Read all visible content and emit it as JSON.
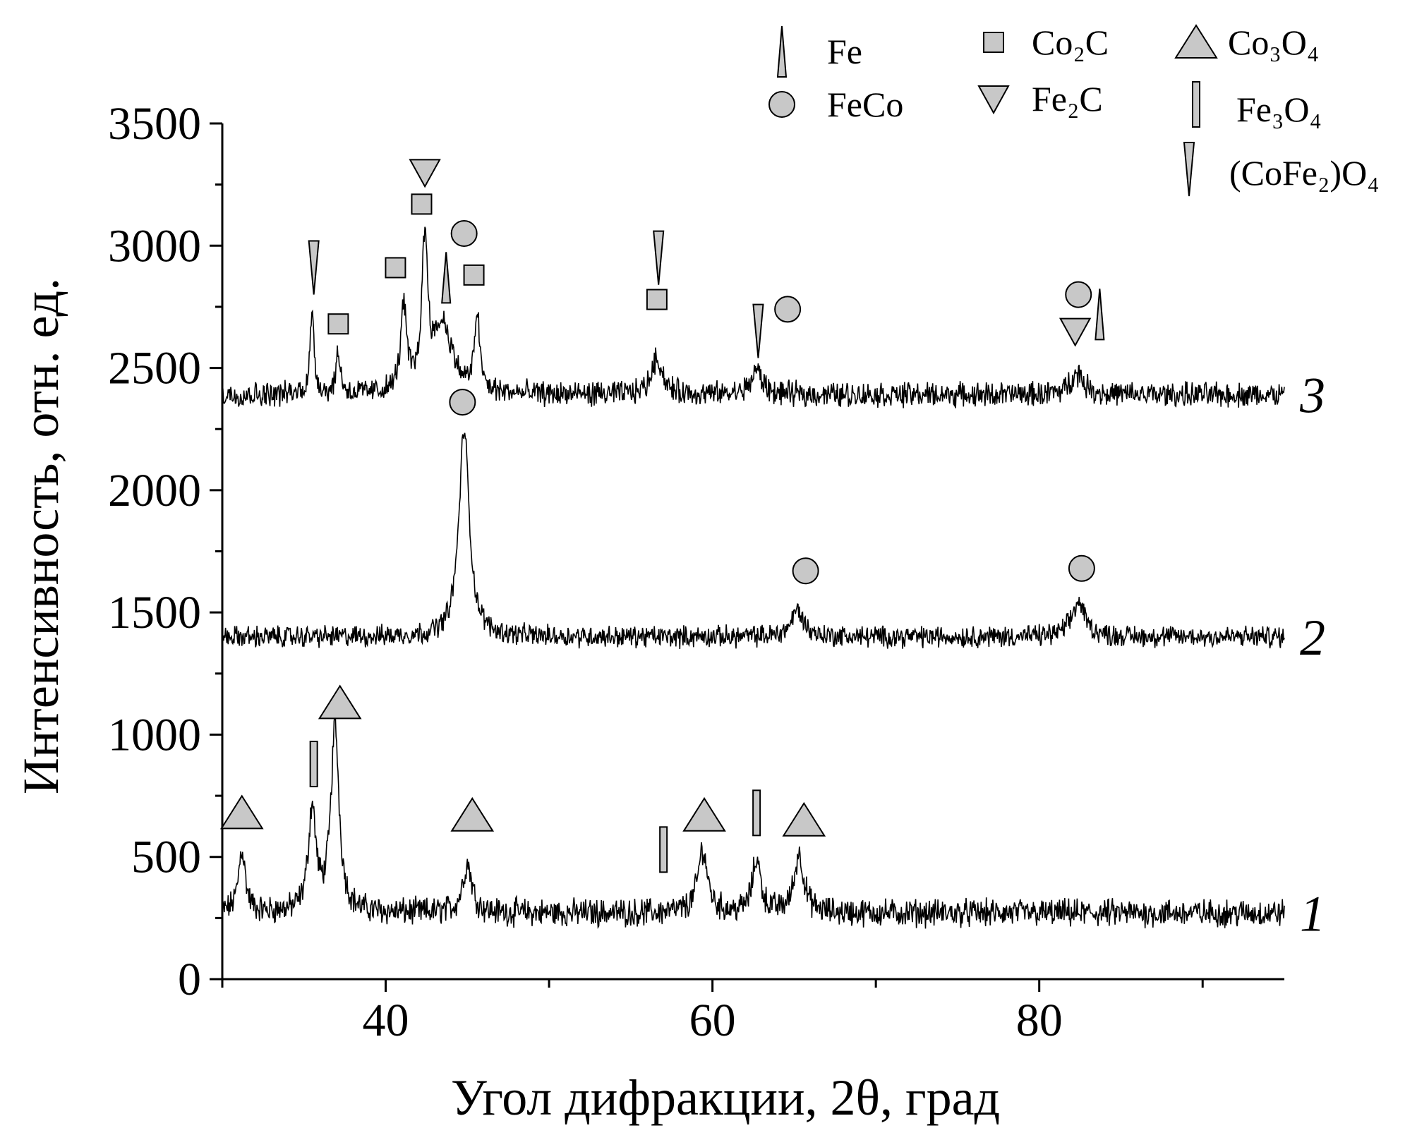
{
  "chart_data": {
    "type": "line",
    "title": "",
    "xlabel": "Угол дифракции, 2θ, град",
    "ylabel": "Интенсивность, отн. ед.",
    "xlim": [
      30,
      95
    ],
    "ylim": [
      0,
      3500
    ],
    "xticks": [
      40,
      60,
      80
    ],
    "yticks": [
      0,
      500,
      1000,
      1500,
      2000,
      2500,
      3000,
      3500
    ],
    "grid": false,
    "legend": {
      "placement": "top-right",
      "entries": [
        {
          "marker": "tall-triangle-up",
          "label": "Fe"
        },
        {
          "marker": "circle",
          "label": "FeCo"
        },
        {
          "marker": "square",
          "label": "Co₂C"
        },
        {
          "marker": "triangle-down",
          "label": "Fe₂C"
        },
        {
          "marker": "triangle-up",
          "label": "Co₃O₄"
        },
        {
          "marker": "bar",
          "label": "Fe₃O₄"
        },
        {
          "marker": "tall-triangle-down",
          "label": "(CoFe₂)O₄"
        }
      ]
    },
    "series": [
      {
        "name": "1",
        "baseline": 270,
        "noise": 45,
        "peaks": [
          {
            "x": 31.2,
            "height": 260,
            "width": 0.25
          },
          {
            "x": 35.5,
            "height": 420,
            "width": 0.28
          },
          {
            "x": 36.9,
            "height": 760,
            "width": 0.3
          },
          {
            "x": 45.0,
            "height": 200,
            "width": 0.35
          },
          {
            "x": 59.4,
            "height": 260,
            "width": 0.35
          },
          {
            "x": 62.7,
            "height": 220,
            "width": 0.3
          },
          {
            "x": 65.3,
            "height": 240,
            "width": 0.35
          }
        ]
      },
      {
        "name": "2",
        "baseline": 1400,
        "noise": 35,
        "peaks": [
          {
            "x": 44.8,
            "height": 850,
            "width": 0.38
          },
          {
            "x": 65.2,
            "height": 110,
            "width": 0.45
          },
          {
            "x": 82.4,
            "height": 140,
            "width": 0.5
          }
        ]
      },
      {
        "name": "3",
        "baseline": 2390,
        "noise": 40,
        "peaks": [
          {
            "x": 35.5,
            "height": 320,
            "width": 0.16
          },
          {
            "x": 37.1,
            "height": 170,
            "width": 0.16
          },
          {
            "x": 41.1,
            "height": 340,
            "width": 0.22
          },
          {
            "x": 42.4,
            "height": 600,
            "width": 0.22
          },
          {
            "x": 43.5,
            "height": 280,
            "width": 0.7
          },
          {
            "x": 45.6,
            "height": 320,
            "width": 0.18
          },
          {
            "x": 56.6,
            "height": 150,
            "width": 0.4
          },
          {
            "x": 62.7,
            "height": 100,
            "width": 0.4
          },
          {
            "x": 82.3,
            "height": 90,
            "width": 0.5
          }
        ]
      }
    ],
    "annotations": [
      {
        "marker": "triangle-up",
        "x": 31.2,
        "y": 680
      },
      {
        "marker": "bar",
        "x": 35.6,
        "y": 880
      },
      {
        "marker": "triangle-up",
        "x": 37.2,
        "y": 1130
      },
      {
        "marker": "triangle-up",
        "x": 45.3,
        "y": 670
      },
      {
        "marker": "bar",
        "x": 57.0,
        "y": 530
      },
      {
        "marker": "triangle-up",
        "x": 59.5,
        "y": 670
      },
      {
        "marker": "bar",
        "x": 62.7,
        "y": 680
      },
      {
        "marker": "triangle-up",
        "x": 65.6,
        "y": 650
      },
      {
        "marker": "circle",
        "x": 65.7,
        "y": 1670
      },
      {
        "marker": "circle",
        "x": 82.6,
        "y": 1680
      },
      {
        "marker": "circle",
        "x": 44.7,
        "y": 2360
      },
      {
        "marker": "tall-triangle-down",
        "x": 35.6,
        "y": 2910
      },
      {
        "marker": "square",
        "x": 37.1,
        "y": 2680
      },
      {
        "marker": "square",
        "x": 40.6,
        "y": 2910
      },
      {
        "marker": "triangle-down",
        "x": 42.4,
        "y": 3300
      },
      {
        "marker": "square",
        "x": 42.2,
        "y": 3170
      },
      {
        "marker": "tall-triangle-up",
        "x": 43.7,
        "y": 2870
      },
      {
        "marker": "circle",
        "x": 44.8,
        "y": 3050
      },
      {
        "marker": "square",
        "x": 45.4,
        "y": 2880
      },
      {
        "marker": "tall-triangle-down",
        "x": 56.7,
        "y": 2950
      },
      {
        "marker": "square",
        "x": 56.6,
        "y": 2780
      },
      {
        "marker": "tall-triangle-down",
        "x": 62.8,
        "y": 2650
      },
      {
        "marker": "circle",
        "x": 64.6,
        "y": 2740
      },
      {
        "marker": "circle",
        "x": 82.4,
        "y": 2800
      },
      {
        "marker": "triangle-down",
        "x": 82.2,
        "y": 2650
      },
      {
        "marker": "tall-triangle-up",
        "x": 83.7,
        "y": 2720
      }
    ]
  }
}
